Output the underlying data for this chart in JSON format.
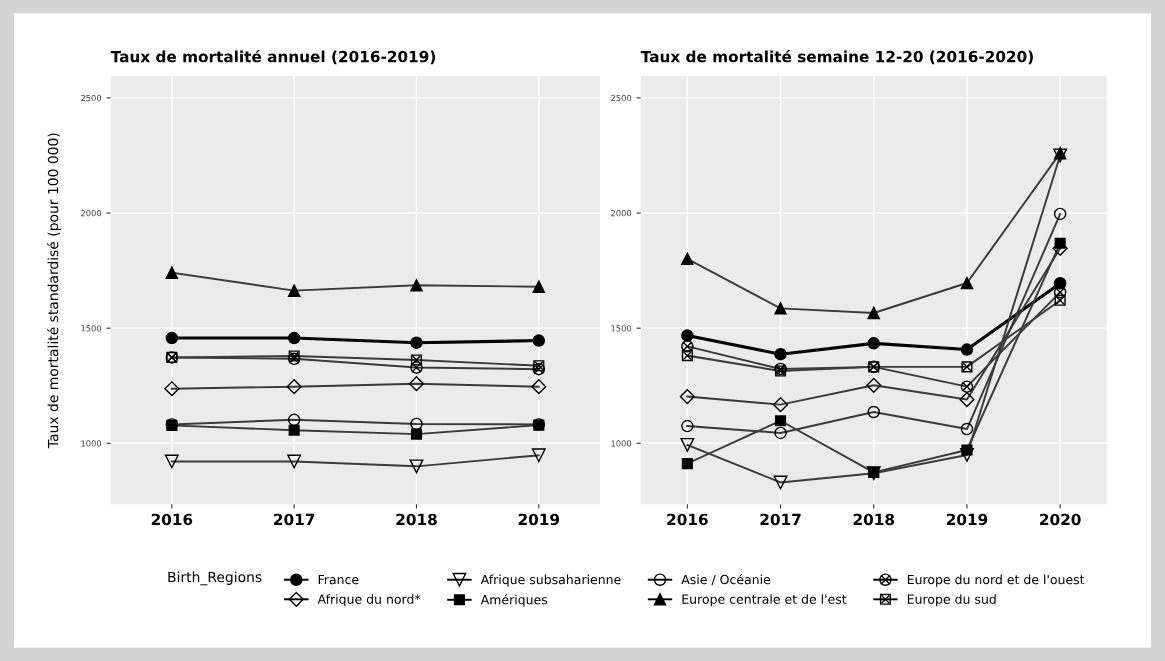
{
  "chart_data": [
    {
      "type": "line",
      "title": "Taux de mortalité annuel (2016-2019)",
      "ylabel": "Taux de mortalité standardisé (pour 100 000)",
      "x": [
        2016,
        2017,
        2018,
        2019
      ],
      "xlim": [
        2015.5,
        2019.5
      ],
      "xticks": [
        2016,
        2017,
        2018,
        2019
      ],
      "ylim": [
        735,
        2595
      ],
      "yticks": [
        1000,
        1500,
        2000,
        2500
      ],
      "grid": true,
      "legend": "bottom",
      "legend_title": "Birth_Regions",
      "series": [
        {
          "name": "France",
          "color": "#000000",
          "marker": "circle",
          "values": [
            1457,
            1457,
            1437,
            1446
          ]
        },
        {
          "name": "Afrique du nord*",
          "color": "#3a3a3a",
          "marker": "diamond_open",
          "values": [
            1237,
            1246,
            1259,
            1246
          ]
        },
        {
          "name": "Afrique subsaharienne",
          "color": "#3a3a3a",
          "marker": "triangle_down_open",
          "values": [
            921,
            921,
            900,
            948
          ]
        },
        {
          "name": "Amériques",
          "color": "#3a3a3a",
          "marker": "square",
          "values": [
            1078,
            1057,
            1040,
            1079
          ]
        },
        {
          "name": "Asie / Océanie",
          "color": "#3a3a3a",
          "marker": "circle_open",
          "values": [
            1082,
            1102,
            1084,
            1082
          ]
        },
        {
          "name": "Europe centrale et de l'est",
          "color": "#3a3a3a",
          "marker": "triangle",
          "values": [
            1741,
            1663,
            1686,
            1680
          ]
        },
        {
          "name": "Europe du nord et de l'ouest",
          "color": "#3a3a3a",
          "marker": "circle_cross",
          "values": [
            1373,
            1367,
            1329,
            1322
          ]
        },
        {
          "name": "Europe du sud",
          "color": "#3a3a3a",
          "marker": "square_cross",
          "values": [
            1373,
            1379,
            1362,
            1337
          ]
        }
      ]
    },
    {
      "type": "line",
      "title": "Taux de mortalité semaine 12-20 (2016-2020)",
      "x": [
        2016,
        2017,
        2018,
        2019,
        2020
      ],
      "xlim": [
        2015.5,
        2020.5
      ],
      "xticks": [
        2016,
        2017,
        2018,
        2019,
        2020
      ],
      "ylim": [
        735,
        2595
      ],
      "yticks": [
        1000,
        1500,
        2000,
        2500
      ],
      "grid": true,
      "series": [
        {
          "color": "#000000",
          "marker": "circle",
          "values": [
            1468,
            1387,
            1434,
            1407,
            1695
          ]
        },
        {
          "color": "#3a3a3a",
          "marker": "diamond_open",
          "values": [
            1203,
            1168,
            1252,
            1190,
            1847
          ]
        },
        {
          "color": "#3a3a3a",
          "marker": "triangle_down_open",
          "values": [
            993,
            830,
            870,
            949,
            2250
          ]
        },
        {
          "color": "#3a3a3a",
          "marker": "square",
          "values": [
            912,
            1098,
            874,
            971,
            1869
          ]
        },
        {
          "color": "#3a3a3a",
          "marker": "circle_open",
          "values": [
            1075,
            1045,
            1136,
            1062,
            1996
          ]
        },
        {
          "color": "#3a3a3a",
          "marker": "triangle",
          "values": [
            1801,
            1586,
            1566,
            1696,
            2260
          ]
        },
        {
          "color": "#3a3a3a",
          "marker": "circle_cross",
          "values": [
            1421,
            1323,
            1332,
            1246,
            1656
          ]
        },
        {
          "color": "#3a3a3a",
          "marker": "square_cross",
          "values": [
            1381,
            1314,
            1332,
            1332,
            1621
          ]
        }
      ]
    }
  ]
}
